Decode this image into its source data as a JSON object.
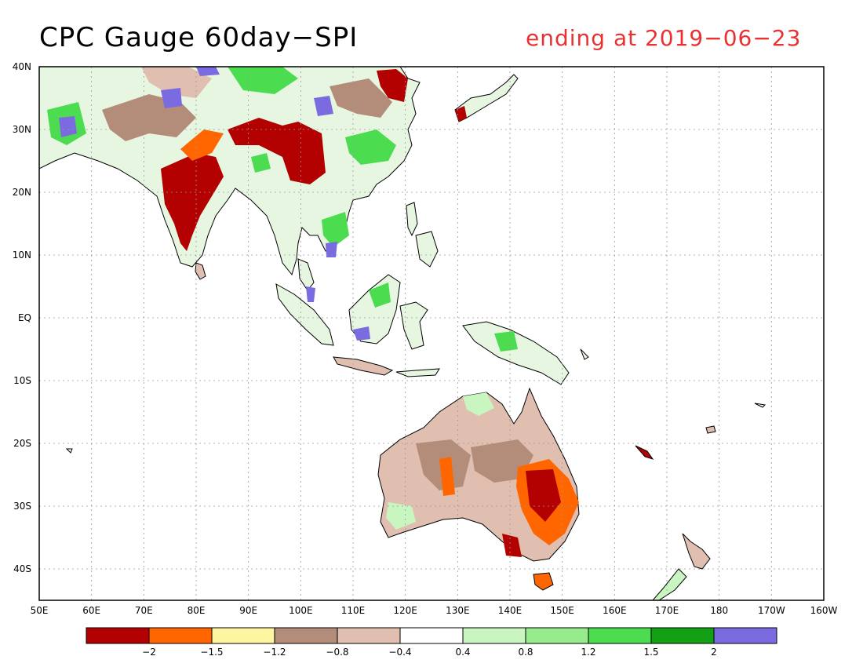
{
  "title": "CPC Gauge 60day−SPI",
  "subtitle": "ending at 2019−06−23",
  "colors": {
    "subtitle": "#e83232",
    "scale": [
      "#b30000",
      "#ff6600",
      "#fff5a0",
      "#b38c7a",
      "#e0bfb0",
      "#ffffff",
      "#c8f5c0",
      "#96eb8c",
      "#4bdc50",
      "#14a014",
      "#7b6be0"
    ]
  },
  "map": {
    "lon_labels": [
      "50E",
      "60E",
      "70E",
      "80E",
      "90E",
      "100E",
      "110E",
      "120E",
      "130E",
      "140E",
      "150E",
      "160E",
      "170E",
      "180",
      "170W",
      "160W"
    ],
    "lat_labels": [
      "40N",
      "30N",
      "20N",
      "10N",
      "EQ",
      "10S",
      "20S",
      "30S",
      "40S"
    ]
  },
  "legend": {
    "tick_labels": [
      "−2",
      "−1.5",
      "−1.2",
      "−0.8",
      "−0.4",
      "0.4",
      "0.8",
      "1.2",
      "1.5",
      "2"
    ]
  }
}
